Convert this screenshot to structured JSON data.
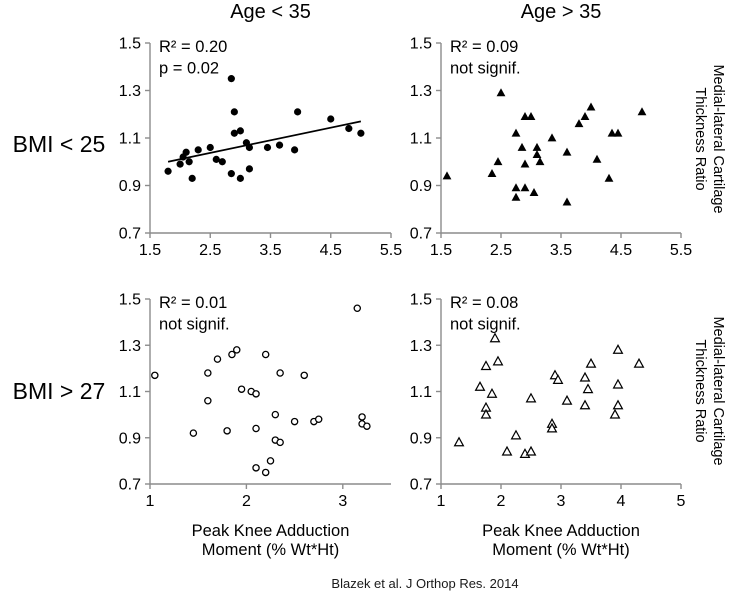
{
  "figure": {
    "column_titles": [
      "Age < 35",
      "Age > 35"
    ],
    "row_labels": [
      "BMI < 25",
      "BMI > 27"
    ],
    "right_axis_label": {
      "line1": "Medial-lateral Cartilage",
      "line2": "Thickness Ratio"
    },
    "x_axis_label": {
      "line1": "Peak Knee Adduction",
      "line2": "Moment (% Wt*Ht)"
    },
    "caption": "Blazek et al. J Orthop Res. 2014",
    "colors": {
      "marker": "#000000",
      "axis": "#8c8c8c",
      "text": "#000000",
      "background": "#ffffff"
    }
  },
  "chart_data": [
    {
      "id": "age-under-35-bmi-under-25",
      "type": "scatter",
      "column_title": "Age < 35",
      "row_label": "BMI < 25",
      "marker": "filled-circle",
      "annotation": [
        "R² = 0.20",
        "p = 0.02"
      ],
      "xlim": [
        1.5,
        5.5
      ],
      "ylim": [
        0.7,
        1.5
      ],
      "xticks": [
        1.5,
        2.5,
        3.5,
        4.5,
        5.5
      ],
      "yticks": [
        1.5,
        1.3,
        1.1,
        0.9,
        0.7
      ],
      "trendline": [
        [
          1.8,
          1.0
        ],
        [
          5.0,
          1.17
        ]
      ],
      "points": [
        [
          1.8,
          0.96
        ],
        [
          2.0,
          0.99
        ],
        [
          2.05,
          1.02
        ],
        [
          2.1,
          1.04
        ],
        [
          2.15,
          1.0
        ],
        [
          2.2,
          0.93
        ],
        [
          2.3,
          1.05
        ],
        [
          2.5,
          1.06
        ],
        [
          2.6,
          1.01
        ],
        [
          2.7,
          1.0
        ],
        [
          2.85,
          1.35
        ],
        [
          2.85,
          0.95
        ],
        [
          2.9,
          1.21
        ],
        [
          2.9,
          1.12
        ],
        [
          3.0,
          1.13
        ],
        [
          3.0,
          0.93
        ],
        [
          3.1,
          1.08
        ],
        [
          3.15,
          1.06
        ],
        [
          3.15,
          0.97
        ],
        [
          3.45,
          1.06
        ],
        [
          3.65,
          1.07
        ],
        [
          3.9,
          1.05
        ],
        [
          3.95,
          1.21
        ],
        [
          4.5,
          1.18
        ],
        [
          4.8,
          1.14
        ],
        [
          5.0,
          1.12
        ]
      ]
    },
    {
      "id": "age-over-35-bmi-under-25",
      "type": "scatter",
      "column_title": "Age > 35",
      "row_label": "BMI < 25",
      "marker": "filled-triangle",
      "annotation": [
        "R² = 0.09",
        "not signif."
      ],
      "xlim": [
        1.5,
        5.5
      ],
      "ylim": [
        0.7,
        1.5
      ],
      "xticks": [
        1.5,
        2.5,
        3.5,
        4.5,
        5.5
      ],
      "yticks": [
        1.5,
        1.3,
        1.1,
        0.9,
        0.7
      ],
      "trendline": null,
      "points": [
        [
          1.6,
          0.94
        ],
        [
          2.35,
          0.95
        ],
        [
          2.45,
          1.0
        ],
        [
          2.5,
          1.29
        ],
        [
          2.75,
          1.12
        ],
        [
          2.75,
          0.89
        ],
        [
          2.75,
          0.85
        ],
        [
          2.85,
          1.06
        ],
        [
          2.9,
          1.19
        ],
        [
          2.9,
          0.99
        ],
        [
          2.9,
          0.89
        ],
        [
          3.0,
          1.19
        ],
        [
          3.05,
          0.87
        ],
        [
          3.1,
          1.06
        ],
        [
          3.1,
          1.03
        ],
        [
          3.15,
          1.0
        ],
        [
          3.35,
          1.1
        ],
        [
          3.6,
          1.04
        ],
        [
          3.6,
          0.83
        ],
        [
          3.8,
          1.16
        ],
        [
          3.9,
          1.19
        ],
        [
          4.0,
          1.23
        ],
        [
          4.1,
          1.01
        ],
        [
          4.3,
          0.93
        ],
        [
          4.35,
          1.12
        ],
        [
          4.45,
          1.12
        ],
        [
          4.85,
          1.21
        ]
      ]
    },
    {
      "id": "age-under-35-bmi-over-27",
      "type": "scatter",
      "column_title": "Age < 35",
      "row_label": "BMI > 27",
      "marker": "open-circle",
      "annotation": [
        "R² = 0.01",
        "not signif."
      ],
      "xlim": [
        1,
        3.5
      ],
      "ylim": [
        0.7,
        1.5
      ],
      "xticks": [
        1,
        2,
        3
      ],
      "yticks": [
        1.5,
        1.3,
        1.1,
        0.9,
        0.7
      ],
      "trendline": null,
      "points": [
        [
          1.05,
          1.17
        ],
        [
          1.45,
          0.92
        ],
        [
          1.6,
          1.18
        ],
        [
          1.6,
          1.06
        ],
        [
          1.7,
          1.24
        ],
        [
          1.8,
          0.93
        ],
        [
          1.85,
          1.26
        ],
        [
          1.9,
          1.28
        ],
        [
          1.95,
          1.11
        ],
        [
          2.05,
          1.1
        ],
        [
          2.1,
          1.09
        ],
        [
          2.1,
          0.94
        ],
        [
          2.1,
          0.77
        ],
        [
          2.2,
          1.26
        ],
        [
          2.2,
          0.75
        ],
        [
          2.25,
          0.8
        ],
        [
          2.3,
          1.0
        ],
        [
          2.3,
          0.89
        ],
        [
          2.35,
          0.88
        ],
        [
          2.35,
          1.18
        ],
        [
          2.5,
          0.97
        ],
        [
          2.6,
          1.17
        ],
        [
          2.7,
          0.97
        ],
        [
          2.75,
          0.98
        ],
        [
          3.15,
          1.46
        ],
        [
          3.2,
          0.99
        ],
        [
          3.2,
          0.96
        ],
        [
          3.25,
          0.95
        ]
      ]
    },
    {
      "id": "age-over-35-bmi-over-27",
      "type": "scatter",
      "column_title": "Age > 35",
      "row_label": "BMI > 27",
      "marker": "open-triangle",
      "annotation": [
        "R² = 0.08",
        "not signif."
      ],
      "xlim": [
        1,
        5
      ],
      "ylim": [
        0.7,
        1.5
      ],
      "xticks": [
        1,
        2,
        3,
        4,
        5
      ],
      "yticks": [
        1.5,
        1.3,
        1.1,
        0.9,
        0.7
      ],
      "trendline": null,
      "points": [
        [
          1.3,
          0.88
        ],
        [
          1.65,
          1.12
        ],
        [
          1.75,
          1.21
        ],
        [
          1.75,
          1.03
        ],
        [
          1.75,
          1.0
        ],
        [
          1.85,
          1.09
        ],
        [
          1.9,
          1.33
        ],
        [
          1.95,
          1.23
        ],
        [
          2.1,
          0.84
        ],
        [
          2.25,
          0.91
        ],
        [
          2.4,
          0.83
        ],
        [
          2.5,
          1.07
        ],
        [
          2.5,
          0.84
        ],
        [
          2.85,
          0.96
        ],
        [
          2.85,
          0.94
        ],
        [
          2.9,
          1.17
        ],
        [
          2.95,
          1.15
        ],
        [
          3.1,
          1.06
        ],
        [
          3.4,
          1.16
        ],
        [
          3.4,
          1.04
        ],
        [
          3.45,
          1.11
        ],
        [
          3.5,
          1.22
        ],
        [
          3.9,
          1.0
        ],
        [
          3.95,
          1.28
        ],
        [
          3.95,
          1.13
        ],
        [
          3.95,
          1.04
        ],
        [
          4.3,
          1.22
        ]
      ]
    }
  ]
}
